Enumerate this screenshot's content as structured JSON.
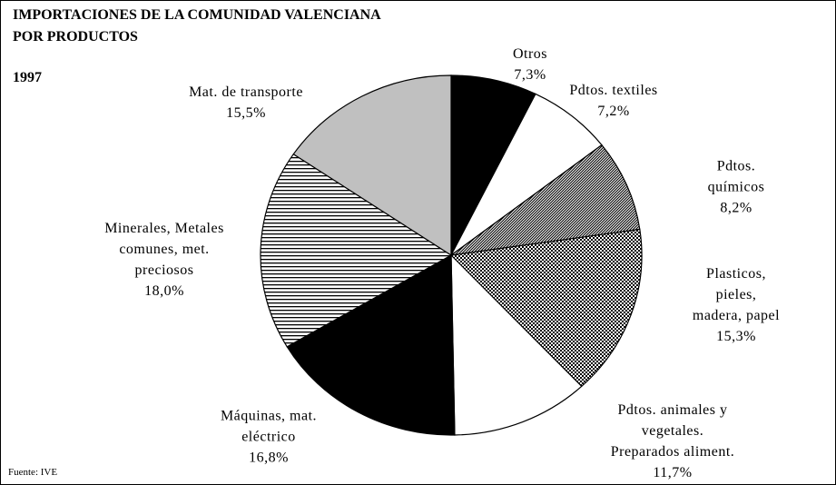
{
  "chart_data": {
    "type": "pie",
    "title": "IMPORTACIONES DE LA COMUNIDAD VALENCIANA\nPOR PRODUCTOS",
    "subtitle": "1997",
    "source": "Fuente: IVE",
    "categories": [
      "Otros",
      "Pdtos. textiles",
      "Pdtos. químicos",
      "Plasticos, pieles,\nmadera, papel",
      "Pdtos. animales y\nvegetales.\nPreparados aliment.",
      "Máquinas, mat.\neléctrico",
      "Minerales, Metales\ncomunes, met.\npreciosos",
      "Mat. de transporte"
    ],
    "values": [
      7.3,
      7.2,
      8.2,
      15.3,
      11.7,
      16.8,
      18.0,
      15.5
    ],
    "value_labels": [
      "7,3%",
      "7,2%",
      "8,2%",
      "15,3%",
      "11,7%",
      "16,8%",
      "18,0%",
      "15,5%"
    ],
    "colors": [
      "#000000",
      "#ffffff",
      "#808080",
      "#ffffff",
      "#ffffff",
      "#000000",
      "#ffffff",
      "#c0c0c0"
    ],
    "patterns": [
      "solid",
      "solid",
      "diagonal",
      "dots",
      "solid",
      "solid",
      "horizontal",
      "solid"
    ]
  }
}
